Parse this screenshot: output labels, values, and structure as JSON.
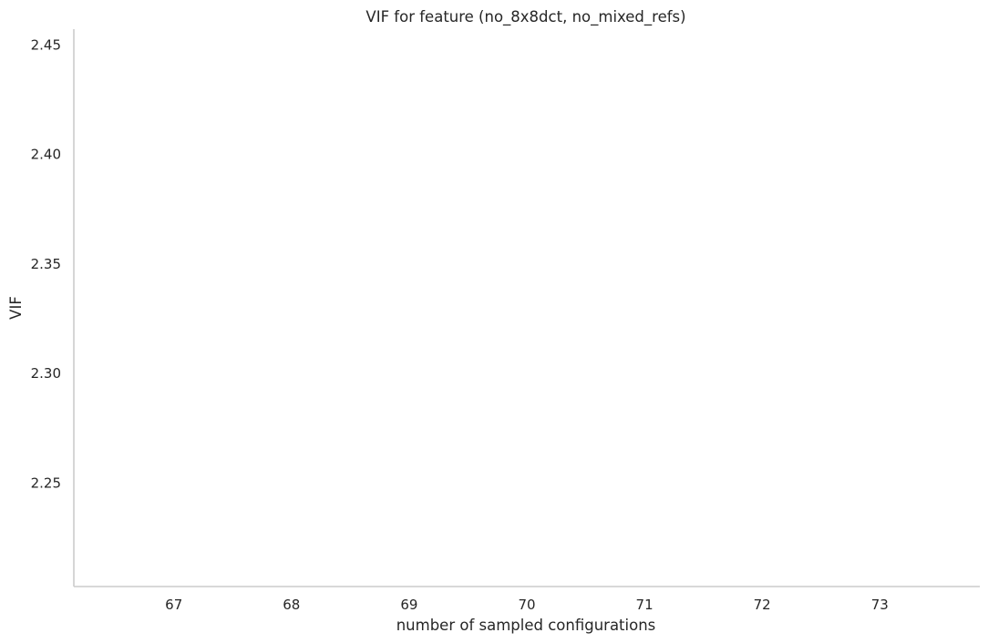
{
  "chart_data": {
    "type": "line",
    "title": "VIF for feature (no_8x8dct, no_mixed_refs)",
    "xlabel": "number of sampled configurations",
    "ylabel": "VIF",
    "xlim": [
      66.15,
      73.85
    ],
    "ylim": [
      2.2027,
      2.4573
    ],
    "x_ticks": [
      67,
      68,
      69,
      70,
      71,
      72,
      73
    ],
    "x_tick_labels": [
      "67",
      "68",
      "69",
      "70",
      "71",
      "72",
      "73"
    ],
    "y_ticks": [
      2.25,
      2.3,
      2.35,
      2.4,
      2.45
    ],
    "y_tick_labels": [
      "2.25",
      "2.30",
      "2.35",
      "2.40",
      "2.45"
    ],
    "series": [],
    "grid": false,
    "legend": "none",
    "colors": {
      "text": "#262626",
      "axis": "#cccccc",
      "background": "#ffffff"
    }
  }
}
